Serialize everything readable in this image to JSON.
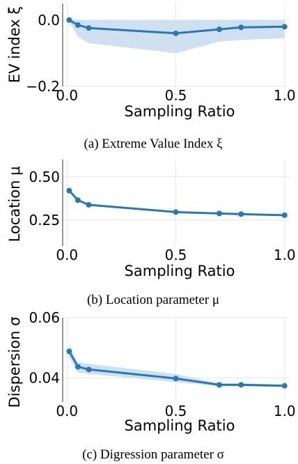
{
  "chart_data": [
    {
      "type": "line",
      "xlabel": "Sampling Ratio",
      "ylabel": "EV index ξ",
      "caption": "(a) Extreme Value Index ξ",
      "xlim": [
        -0.02,
        1.02
      ],
      "ylim": [
        -0.2,
        0.05
      ],
      "xticks": [
        0.0,
        0.5,
        1.0
      ],
      "xtick_labels": [
        "0.0",
        "0.5",
        "1.0"
      ],
      "yticks": [
        -0.2,
        0.0
      ],
      "ytick_labels": [
        "−0.2",
        "0.0"
      ],
      "grid": true,
      "x": [
        0.01,
        0.05,
        0.1,
        0.5,
        0.7,
        0.8,
        1.0
      ],
      "y": [
        0.0,
        -0.015,
        -0.024,
        -0.04,
        -0.028,
        -0.022,
        -0.02
      ],
      "band_lower": [
        -0.005,
        -0.05,
        -0.07,
        -0.1,
        -0.065,
        -0.06,
        -0.055
      ],
      "band_upper": [
        0.003,
        0.0,
        0.0,
        0.0,
        0.0,
        0.0,
        0.0
      ],
      "color": "#2878b5",
      "band_color": "#cfe1f0"
    },
    {
      "type": "line",
      "xlabel": "Sampling Ratio",
      "ylabel": "Location μ",
      "caption": "(b) Location parameter μ",
      "xlim": [
        -0.02,
        1.02
      ],
      "ylim": [
        0.1,
        0.6
      ],
      "xticks": [
        0.0,
        0.5,
        1.0
      ],
      "xtick_labels": [
        "0.0",
        "0.5",
        "1.0"
      ],
      "yticks": [
        0.25,
        0.5
      ],
      "ytick_labels": [
        "0.25",
        "0.50"
      ],
      "grid": true,
      "x": [
        0.01,
        0.05,
        0.1,
        0.5,
        0.7,
        0.8,
        1.0
      ],
      "y": [
        0.42,
        0.365,
        0.338,
        0.296,
        0.288,
        0.284,
        0.278
      ],
      "band_lower": [
        0.42,
        0.365,
        0.338,
        0.296,
        0.288,
        0.284,
        0.278
      ],
      "band_upper": [
        0.42,
        0.365,
        0.338,
        0.296,
        0.288,
        0.284,
        0.278
      ],
      "color": "#2878b5",
      "band_color": "#cfe1f0"
    },
    {
      "type": "line",
      "xlabel": "Sampling Ratio",
      "ylabel": "Dispersion σ",
      "caption": "(c) Digression parameter σ",
      "xlim": [
        -0.02,
        1.02
      ],
      "ylim": [
        0.032,
        0.06
      ],
      "xticks": [
        0.0,
        0.5,
        1.0
      ],
      "xtick_labels": [
        "0.0",
        "0.5",
        "1.0"
      ],
      "yticks": [
        0.04,
        0.06
      ],
      "ytick_labels": [
        "0.04",
        "0.06"
      ],
      "grid": true,
      "x": [
        0.01,
        0.05,
        0.1,
        0.5,
        0.7,
        0.8,
        1.0
      ],
      "y": [
        0.0488,
        0.0437,
        0.0428,
        0.0398,
        0.0377,
        0.0377,
        0.0374
      ],
      "band_lower": [
        0.0468,
        0.0418,
        0.0413,
        0.0386,
        0.0372,
        0.0372,
        0.037
      ],
      "band_upper": [
        0.051,
        0.0452,
        0.0447,
        0.0413,
        0.0382,
        0.0382,
        0.0378
      ],
      "color": "#2878b5",
      "band_color": "#cfe1f0"
    }
  ]
}
